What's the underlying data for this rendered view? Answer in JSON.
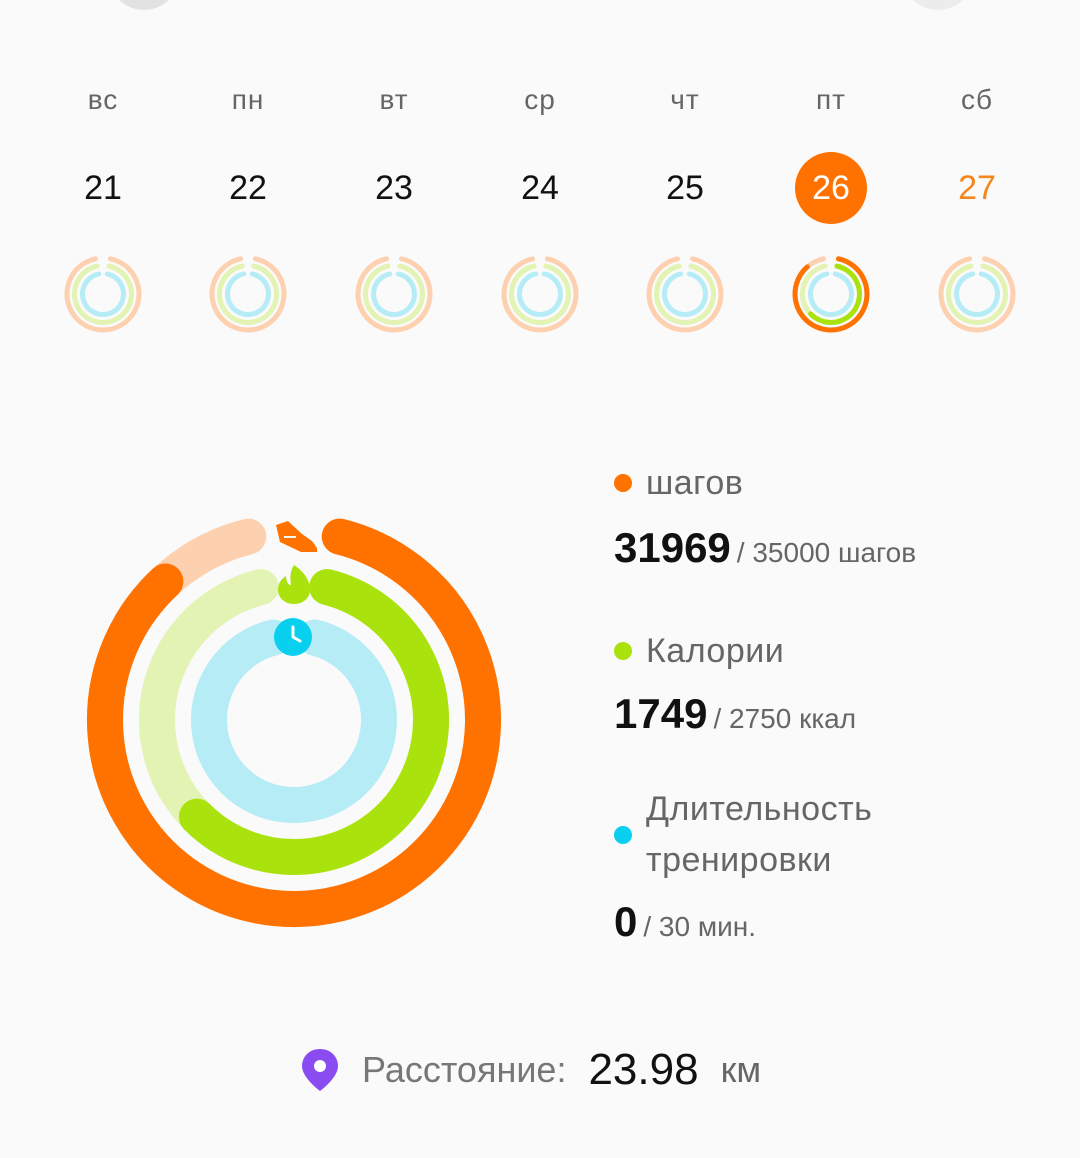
{
  "colors": {
    "steps": "#ff7200",
    "steps_track": "#fdd0b0",
    "calories": "#aae20e",
    "calories_track": "#e2f3b3",
    "duration": "#0ad0f0",
    "duration_track": "#b6ecf6",
    "distance_icon": "#8a4cf0"
  },
  "week": {
    "days": [
      {
        "name": "вс",
        "number": "21",
        "selected": false,
        "weekend": false
      },
      {
        "name": "пн",
        "number": "22",
        "selected": false,
        "weekend": false
      },
      {
        "name": "вт",
        "number": "23",
        "selected": false,
        "weekend": false
      },
      {
        "name": "ср",
        "number": "24",
        "selected": false,
        "weekend": false
      },
      {
        "name": "чт",
        "number": "25",
        "selected": false,
        "weekend": false
      },
      {
        "name": "пт",
        "number": "26",
        "selected": true,
        "weekend": false
      },
      {
        "name": "сб",
        "number": "27",
        "selected": false,
        "weekend": true
      }
    ]
  },
  "summary": {
    "rings": {
      "steps_fraction": 0.913,
      "calories_fraction": 0.636,
      "duration_fraction": 0.0
    },
    "steps": {
      "label": "шагов",
      "value": "31969",
      "goal": "/ 35000 шагов"
    },
    "calories": {
      "label": "Калории",
      "value": "1749",
      "goal": "/ 2750 ккал"
    },
    "duration": {
      "label_line1": "Длительность",
      "label_line2": "тренировки",
      "value": "0",
      "goal": "/ 30 мин."
    },
    "icons": {
      "steps": "shoe-icon",
      "calories": "flame-icon",
      "duration": "clock-icon"
    }
  },
  "distance": {
    "icon": "location-pin-icon",
    "label": "Расстояние:",
    "value": "23.98",
    "unit": "км"
  }
}
